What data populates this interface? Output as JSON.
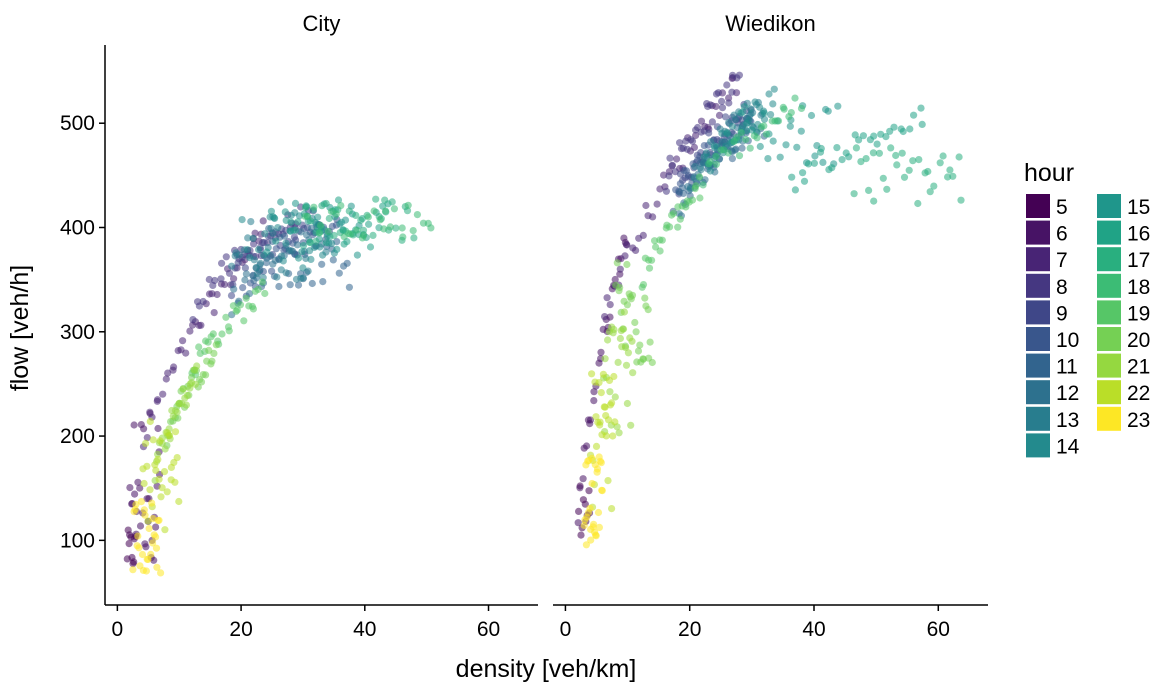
{
  "chart_data": {
    "type": "scatter",
    "xlabel": "density [veh/km]",
    "ylabel": "flow [veh/h]",
    "xlim": [
      -2,
      68
    ],
    "ylim": [
      38,
      575
    ],
    "x_ticks": [
      0,
      20,
      40,
      60
    ],
    "y_ticks": [
      100,
      200,
      300,
      400,
      500
    ],
    "grid": false,
    "point_alpha": 0.55,
    "legend": {
      "title": "hour",
      "position": "right",
      "entries": [
        {
          "label": "5",
          "hour": 5,
          "color": "#440154"
        },
        {
          "label": "6",
          "hour": 6,
          "color": "#471365"
        },
        {
          "label": "7",
          "hour": 7,
          "color": "#482475"
        },
        {
          "label": "8",
          "hour": 8,
          "color": "#453781"
        },
        {
          "label": "9",
          "hour": 9,
          "color": "#3F4788"
        },
        {
          "label": "10",
          "hour": 10,
          "color": "#39568C"
        },
        {
          "label": "11",
          "hour": 11,
          "color": "#32648E"
        },
        {
          "label": "12",
          "hour": 12,
          "color": "#2D718E"
        },
        {
          "label": "13",
          "hour": 13,
          "color": "#287D8E"
        },
        {
          "label": "14",
          "hour": 14,
          "color": "#238A8D"
        },
        {
          "label": "15",
          "hour": 15,
          "color": "#1F968B"
        },
        {
          "label": "16",
          "hour": 16,
          "color": "#20A386"
        },
        {
          "label": "17",
          "hour": 17,
          "color": "#29AF7F"
        },
        {
          "label": "18",
          "hour": 18,
          "color": "#3CBC75"
        },
        {
          "label": "19",
          "hour": 19,
          "color": "#56C667"
        },
        {
          "label": "20",
          "hour": 20,
          "color": "#75D054"
        },
        {
          "label": "21",
          "hour": 21,
          "color": "#95D840"
        },
        {
          "label": "22",
          "hour": 22,
          "color": "#BADE28"
        },
        {
          "label": "23",
          "hour": 23,
          "color": "#FDE725"
        }
      ]
    },
    "panels": [
      {
        "name": "City",
        "clusters": [
          {
            "hour": 5,
            "n": 10,
            "x": [
              1.5,
              3.0
            ],
            "y": [
              70,
              110
            ]
          },
          {
            "hour": 6,
            "n": 28,
            "x": [
              2.0,
              7.0
            ],
            "y": [
              80,
              230
            ]
          },
          {
            "hour": 7,
            "n": 40,
            "x": [
              4.0,
              24.0
            ],
            "y": [
              180,
              400
            ]
          },
          {
            "hour": 8,
            "n": 30,
            "x": [
              12.0,
              30.0
            ],
            "y": [
              320,
              410
            ]
          },
          {
            "hour": 9,
            "n": 30,
            "x": [
              18.0,
              32.0
            ],
            "y": [
              340,
              410
            ]
          },
          {
            "hour": 10,
            "n": 30,
            "x": [
              20.0,
              36.0
            ],
            "y": [
              335,
              405
            ]
          },
          {
            "hour": 11,
            "n": 30,
            "x": [
              22.0,
              38.0
            ],
            "y": [
              340,
              400
            ]
          },
          {
            "hour": 12,
            "n": 30,
            "x": [
              18.0,
              34.0
            ],
            "y": [
              320,
              400
            ]
          },
          {
            "hour": 13,
            "n": 30,
            "x": [
              18.0,
              34.0
            ],
            "y": [
              350,
              410
            ]
          },
          {
            "hour": 14,
            "n": 30,
            "x": [
              20.0,
              36.0
            ],
            "y": [
              360,
              420
            ]
          },
          {
            "hour": 15,
            "n": 30,
            "x": [
              24.0,
              40.0
            ],
            "y": [
              370,
              425
            ]
          },
          {
            "hour": 16,
            "n": 30,
            "x": [
              28.0,
              44.0
            ],
            "y": [
              380,
              428
            ]
          },
          {
            "hour": 17,
            "n": 30,
            "x": [
              30.0,
              48.0
            ],
            "y": [
              385,
              430
            ]
          },
          {
            "hour": 18,
            "n": 30,
            "x": [
              30.0,
              51.0
            ],
            "y": [
              390,
              425
            ]
          },
          {
            "hour": 19,
            "n": 28,
            "x": [
              12.0,
              24.0
            ],
            "y": [
              260,
              340
            ]
          },
          {
            "hour": 20,
            "n": 28,
            "x": [
              8.0,
              16.0
            ],
            "y": [
              200,
              280
            ]
          },
          {
            "hour": 21,
            "n": 28,
            "x": [
              6.0,
              13.0
            ],
            "y": [
              160,
              260
            ]
          },
          {
            "hour": 22,
            "n": 28,
            "x": [
              4.0,
              10.0
            ],
            "y": [
              110,
              220
            ]
          },
          {
            "hour": 23,
            "n": 28,
            "x": [
              2.5,
              7.0
            ],
            "y": [
              65,
              140
            ]
          }
        ]
      },
      {
        "name": "Wiedikon",
        "clusters": [
          {
            "hour": 5,
            "n": 10,
            "x": [
              2.0,
              4.0
            ],
            "y": [
              100,
              160
            ]
          },
          {
            "hour": 6,
            "n": 28,
            "x": [
              2.0,
              10.0
            ],
            "y": [
              110,
              400
            ]
          },
          {
            "hour": 7,
            "n": 40,
            "x": [
              6.0,
              28.0
            ],
            "y": [
              300,
              545
            ]
          },
          {
            "hour": 8,
            "n": 30,
            "x": [
              16.0,
              28.0
            ],
            "y": [
              440,
              540
            ]
          },
          {
            "hour": 9,
            "n": 30,
            "x": [
              18.0,
              30.0
            ],
            "y": [
              430,
              520
            ]
          },
          {
            "hour": 10,
            "n": 30,
            "x": [
              17.0,
              30.0
            ],
            "y": [
              420,
              510
            ]
          },
          {
            "hour": 11,
            "n": 30,
            "x": [
              18.0,
              32.0
            ],
            "y": [
              420,
              500
            ]
          },
          {
            "hour": 12,
            "n": 30,
            "x": [
              18.0,
              30.0
            ],
            "y": [
              410,
              500
            ]
          },
          {
            "hour": 13,
            "n": 30,
            "x": [
              20.0,
              32.0
            ],
            "y": [
              440,
              520
            ]
          },
          {
            "hour": 14,
            "n": 30,
            "x": [
              22.0,
              34.0
            ],
            "y": [
              450,
              525
            ]
          },
          {
            "hour": 15,
            "n": 30,
            "x": [
              26.0,
              44.0
            ],
            "y": [
              460,
              520
            ]
          },
          {
            "hour": 16,
            "n": 30,
            "x": [
              36.0,
              58.0
            ],
            "y": [
              440,
              505
            ]
          },
          {
            "hour": 17,
            "n": 30,
            "x": [
              46.0,
              64.0
            ],
            "y": [
              420,
              480
            ]
          },
          {
            "hour": 18,
            "n": 28,
            "x": [
              22.0,
              38.0
            ],
            "y": [
              440,
              520
            ]
          },
          {
            "hour": 19,
            "n": 28,
            "x": [
              12.0,
              22.0
            ],
            "y": [
              340,
              440
            ]
          },
          {
            "hour": 20,
            "n": 28,
            "x": [
              8.0,
              14.0
            ],
            "y": [
              260,
              380
            ]
          },
          {
            "hour": 21,
            "n": 28,
            "x": [
              6.0,
              11.0
            ],
            "y": [
              200,
              320
            ]
          },
          {
            "hour": 22,
            "n": 28,
            "x": [
              4.0,
              8.0
            ],
            "y": [
              130,
              260
            ]
          },
          {
            "hour": 23,
            "n": 28,
            "x": [
              3.0,
              6.0
            ],
            "y": [
              95,
              180
            ]
          }
        ]
      }
    ]
  }
}
